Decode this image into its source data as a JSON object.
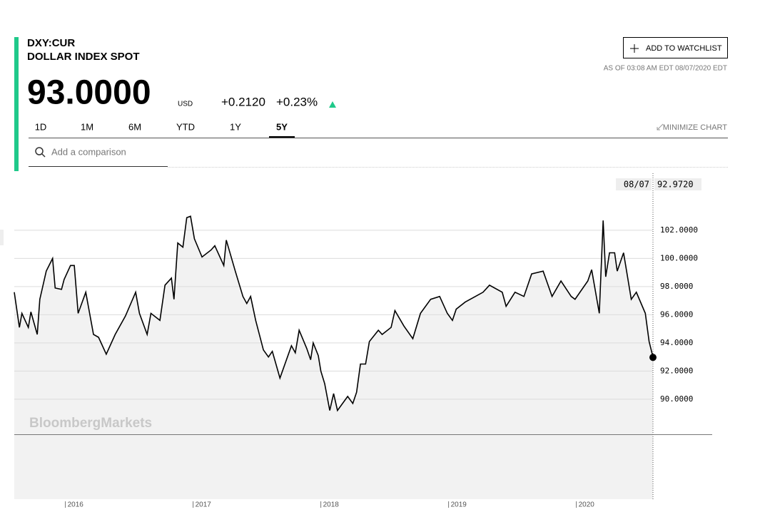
{
  "header": {
    "ticker": "DXY:CUR",
    "name": "DOLLAR INDEX SPOT",
    "price": "93.0000",
    "currency": "USD",
    "change": "+0.2120",
    "change_pct": "+0.23%",
    "watchlist_button": "ADD TO WATCHLIST",
    "as_of": "AS OF 03:08 AM EDT 08/07/2020 EDT"
  },
  "ranges": [
    "1D",
    "1M",
    "6M",
    "YTD",
    "1Y",
    "5Y"
  ],
  "active_range": 5,
  "minimize": "MINIMIZE CHART",
  "search_placeholder": "Add a comparison",
  "watermark": "BloombergMarkets",
  "chart_data": {
    "type": "area",
    "color": "#000000",
    "fill": "#f2f2f2",
    "x": [
      2015.6,
      2015.64,
      2015.66,
      2015.71,
      2015.73,
      2015.78,
      2015.8,
      2015.85,
      2015.9,
      2015.92,
      2015.97,
      2015.99,
      2016.04,
      2016.07,
      2016.1,
      2016.16,
      2016.22,
      2016.26,
      2016.32,
      2016.39,
      2016.47,
      2016.55,
      2016.58,
      2016.64,
      2016.67,
      2016.74,
      2016.78,
      2016.83,
      2016.85,
      2016.88,
      2016.92,
      2016.95,
      2016.98,
      2017.01,
      2017.07,
      2017.14,
      2017.17,
      2017.24,
      2017.26,
      2017.33,
      2017.39,
      2017.42,
      2017.45,
      2017.49,
      2017.55,
      2017.59,
      2017.62,
      2017.68,
      2017.77,
      2017.8,
      2017.83,
      2017.89,
      2017.92,
      2017.94,
      2017.98,
      2018.0,
      2018.03,
      2018.07,
      2018.1,
      2018.13,
      2018.21,
      2018.25,
      2018.28,
      2018.31,
      2018.35,
      2018.38,
      2018.45,
      2018.48,
      2018.55,
      2018.58,
      2018.65,
      2018.72,
      2018.78,
      2018.86,
      2018.93,
      2018.99,
      2019.03,
      2019.06,
      2019.13,
      2019.21,
      2019.27,
      2019.32,
      2019.42,
      2019.45,
      2019.52,
      2019.59,
      2019.65,
      2019.74,
      2019.81,
      2019.88,
      2019.96,
      2019.99,
      2020.09,
      2020.12,
      2020.18,
      2020.21,
      2020.23,
      2020.26,
      2020.3,
      2020.32,
      2020.37,
      2020.43,
      2020.47,
      2020.54,
      2020.57,
      2020.6
    ],
    "values": [
      97.6,
      95.1,
      96.1,
      95.1,
      96.2,
      94.6,
      97.1,
      99.1,
      100.0,
      97.9,
      97.8,
      98.5,
      99.5,
      99.5,
      96.1,
      97.6,
      94.6,
      94.4,
      93.2,
      94.6,
      95.9,
      97.6,
      96.1,
      94.6,
      96.1,
      95.6,
      98.1,
      98.6,
      97.1,
      101.1,
      100.8,
      102.9,
      103.0,
      101.4,
      100.1,
      100.6,
      100.9,
      99.5,
      101.3,
      99.1,
      97.3,
      96.8,
      97.3,
      95.6,
      93.5,
      93.0,
      93.4,
      91.5,
      93.8,
      93.3,
      94.9,
      93.6,
      92.8,
      94.0,
      93.1,
      92.0,
      91.1,
      89.2,
      90.4,
      89.2,
      90.2,
      89.7,
      90.5,
      92.5,
      92.5,
      94.1,
      94.9,
      94.6,
      95.1,
      96.3,
      95.2,
      94.3,
      96.1,
      97.1,
      97.3,
      96.1,
      95.6,
      96.4,
      96.9,
      97.3,
      97.6,
      98.1,
      97.6,
      96.6,
      97.6,
      97.3,
      98.9,
      99.1,
      97.3,
      98.4,
      97.3,
      97.1,
      98.4,
      99.2,
      96.1,
      102.7,
      98.7,
      100.4,
      100.4,
      99.1,
      100.4,
      97.1,
      97.6,
      96.1,
      94.1,
      93.0
    ],
    "xlim": [
      2015.6,
      2020.6
    ],
    "xticks": [
      2016,
      2017,
      2018,
      2019,
      2020
    ],
    "ylim": [
      82.9,
      106.2
    ],
    "yticks": [
      {
        "value": 90,
        "label": "90.0000"
      },
      {
        "value": 92,
        "label": "92.0000"
      },
      {
        "value": 94,
        "label": "94.0000"
      },
      {
        "value": 96,
        "label": "96.0000"
      },
      {
        "value": 98,
        "label": "98.0000"
      },
      {
        "value": 100,
        "label": "100.0000"
      },
      {
        "value": 102,
        "label": "102.0000"
      }
    ],
    "grid": true,
    "crosshair": {
      "date": "08/07",
      "value": 92.972,
      "value_label": "92.9720"
    }
  }
}
